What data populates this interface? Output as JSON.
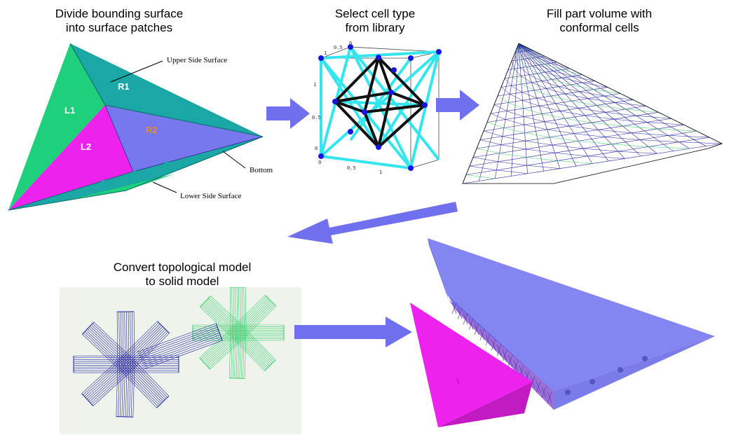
{
  "steps": [
    {
      "title_line1": "Divide bounding surface",
      "title_line2": "into surface patches"
    },
    {
      "title_line1": "Select cell type",
      "title_line2": "from library"
    },
    {
      "title_line1": "Fill part volume with",
      "title_line2": "conformal cells"
    },
    {
      "title_line1": "Convert topological model",
      "title_line2": "to solid model"
    }
  ],
  "patch_labels": {
    "l1": "L1",
    "l2": "L2",
    "r1": "R1",
    "r2": "R2"
  },
  "callouts": {
    "upper": "Upper Side Surface",
    "bottom": "Bottom",
    "lower": "Lower Side Surface"
  },
  "cube_ticks": {
    "top_0": "0",
    "top_05": "0.5",
    "top_1": "1",
    "left_1": "1",
    "left_05": "0.5",
    "left_0": "0",
    "bottom_0": "0",
    "bottom_05": "0.5",
    "bottom_1": "1"
  },
  "colors": {
    "green": "#1fd07a",
    "teal": "#1aa7a5",
    "magenta": "#ee22ee",
    "periwinkle": "#7878ee",
    "arrow": "#7070ee",
    "cyan_strut": "#33e6ee",
    "node": "#1515dd",
    "blue_mesh": "#2020a0",
    "green_mesh": "#33cc66"
  }
}
